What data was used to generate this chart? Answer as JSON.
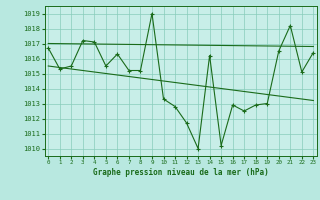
{
  "title": "Graphe pression niveau de la mer (hPa)",
  "bg_color": "#b8e8e0",
  "plot_bg_color": "#c8eee8",
  "line_color": "#1a6b1a",
  "grid_color": "#88ccbb",
  "x_min": 0,
  "x_max": 23,
  "y_min": 1009.5,
  "y_max": 1019.5,
  "y_ticks": [
    1010,
    1011,
    1012,
    1013,
    1014,
    1015,
    1016,
    1017,
    1018,
    1019
  ],
  "series1_x": [
    0,
    1,
    2,
    3,
    4,
    5,
    6,
    7,
    8,
    9,
    10,
    11,
    12,
    13,
    14,
    15,
    16,
    17,
    18,
    19,
    20,
    21,
    22,
    23
  ],
  "series1_y": [
    1016.7,
    1015.3,
    1015.5,
    1017.2,
    1017.1,
    1015.5,
    1016.3,
    1015.2,
    1015.2,
    1019.0,
    1013.3,
    1012.8,
    1011.7,
    1010.0,
    1016.2,
    1010.2,
    1012.9,
    1012.5,
    1012.9,
    1013.0,
    1016.5,
    1018.2,
    1015.1,
    1016.4
  ],
  "trend1_x": [
    0,
    23
  ],
  "trend1_y": [
    1017.0,
    1016.8
  ],
  "trend2_x": [
    0,
    23
  ],
  "trend2_y": [
    1015.5,
    1013.2
  ],
  "marker": "+"
}
